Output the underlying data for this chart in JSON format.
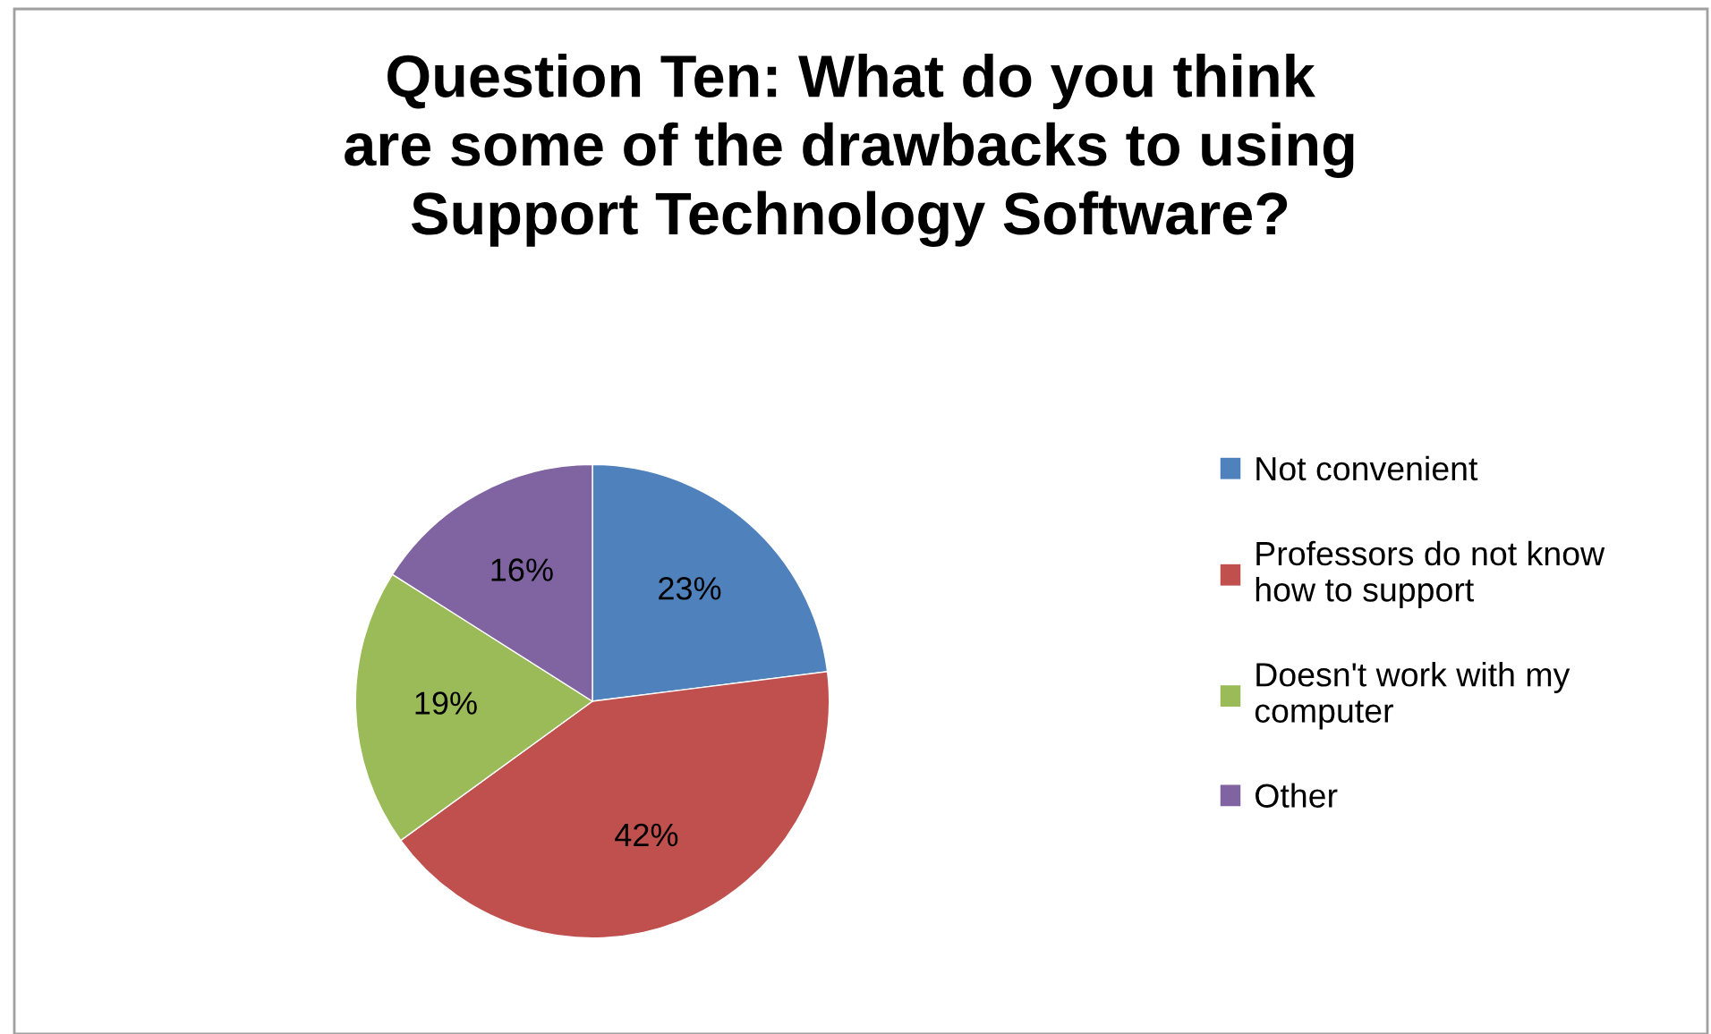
{
  "chart_data": {
    "type": "pie",
    "title": "Question Ten: What do you think are some of the drawbacks to using Support Technology Software?",
    "categories": [
      "Not convenient",
      "Professors do not know how to support",
      "Doesn't work with my computer",
      "Other"
    ],
    "values": [
      23,
      42,
      19,
      16
    ],
    "colors": [
      "#4f81bd",
      "#c0504d",
      "#9bbb59",
      "#8064a2"
    ],
    "value_labels": [
      "23%",
      "42%",
      "19%",
      "16%"
    ],
    "legend": "right"
  }
}
